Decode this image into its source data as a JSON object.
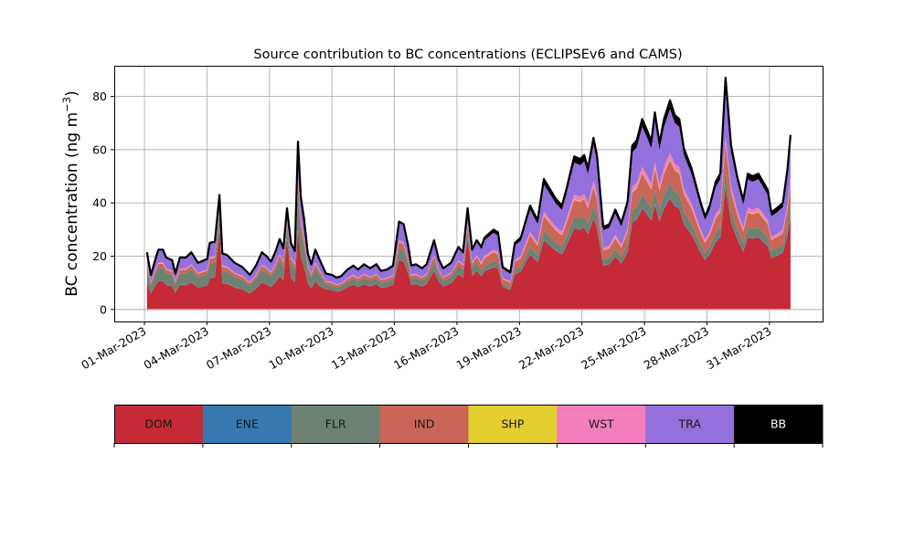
{
  "chart_data": {
    "type": "area",
    "stacked": true,
    "title": "Source contribution to BC concentrations (ECLIPSEv6 and CAMS)",
    "xlabel": "",
    "ylabel": "BC concentration (ng m",
    "ylabel_exponent": "−3",
    "ylabel_close": ")",
    "xlim_days_from_start": [
      -1.45,
      32.55
    ],
    "ylim": [
      -4.5,
      91.5
    ],
    "yticks": [
      0,
      20,
      40,
      60,
      80
    ],
    "xtick_labels": [
      "01-Mar-2023",
      "04-Mar-2023",
      "07-Mar-2023",
      "10-Mar-2023",
      "13-Mar-2023",
      "16-Mar-2023",
      "19-Mar-2023",
      "22-Mar-2023",
      "25-Mar-2023",
      "28-Mar-2023",
      "31-Mar-2023"
    ],
    "xtick_days": [
      0,
      3,
      6,
      9,
      12,
      15,
      18,
      21,
      24,
      27,
      30
    ],
    "grid": true,
    "legend_position": "bottom",
    "sources": [
      {
        "name": "DOM",
        "color": "#c52a37",
        "text_color": "#1a1a1a"
      },
      {
        "name": "ENE",
        "color": "#3878b0",
        "text_color": "#1a1a1a"
      },
      {
        "name": "FLR",
        "color": "#6d8272",
        "text_color": "#1a1a1a"
      },
      {
        "name": "IND",
        "color": "#c96657",
        "text_color": "#1a1a1a"
      },
      {
        "name": "SHP",
        "color": "#e4cd2f",
        "text_color": "#1a1a1a"
      },
      {
        "name": "WST",
        "color": "#f27fbc",
        "text_color": "#1a1a1a"
      },
      {
        "name": "TRA",
        "color": "#9370db",
        "text_color": "#1a1a1a"
      },
      {
        "name": "BB",
        "color": "#000000",
        "text_color": "#ffffff"
      }
    ],
    "x_days": [
      0.12,
      0.31,
      0.53,
      0.67,
      0.89,
      1.04,
      1.33,
      1.48,
      1.7,
      1.99,
      2.25,
      2.57,
      3.01,
      3.13,
      3.38,
      3.6,
      3.74,
      3.96,
      4.33,
      4.69,
      5.06,
      5.35,
      5.64,
      5.86,
      6.08,
      6.3,
      6.49,
      6.67,
      6.84,
      7.03,
      7.22,
      7.37,
      7.51,
      7.66,
      7.84,
      8.01,
      8.2,
      8.42,
      8.71,
      9.0,
      9.22,
      9.44,
      9.74,
      10.03,
      10.25,
      10.54,
      10.83,
      11.13,
      11.35,
      11.64,
      11.93,
      12.22,
      12.44,
      12.66,
      12.81,
      13.03,
      13.32,
      13.54,
      13.9,
      14.12,
      14.34,
      14.71,
      15.07,
      15.29,
      15.51,
      15.73,
      15.95,
      16.17,
      16.32,
      16.75,
      16.97,
      17.19,
      17.56,
      17.78,
      18.07,
      18.51,
      18.87,
      19.17,
      19.75,
      20.04,
      20.26,
      20.63,
      20.92,
      21.11,
      21.29,
      21.55,
      21.72,
      22.02,
      22.31,
      22.6,
      22.89,
      23.19,
      23.41,
      23.63,
      23.89,
      24.14,
      24.33,
      24.5,
      24.72,
      24.94,
      25.23,
      25.45,
      25.67,
      25.89,
      26.26,
      26.7,
      26.91,
      27.13,
      27.42,
      27.64,
      27.89,
      28.16,
      28.45,
      28.74,
      28.96,
      29.18,
      29.47,
      29.69,
      29.91,
      30.09,
      30.35,
      30.64,
      30.86,
      31.01
    ],
    "total": [
      21.5,
      13,
      19,
      22.5,
      22.5,
      19.5,
      18.5,
      13.5,
      19.5,
      19.5,
      21.5,
      17.5,
      19,
      25,
      25.5,
      43,
      21,
      20.5,
      17.5,
      16,
      13,
      16.5,
      21.5,
      20,
      18,
      22,
      26.5,
      23,
      38,
      25,
      22,
      63,
      42,
      34,
      21,
      17,
      22.5,
      18.5,
      13.5,
      13,
      12,
      12.5,
      15,
      16.5,
      15,
      17,
      15.5,
      17,
      14.5,
      15,
      16.5,
      33,
      32,
      24,
      16.5,
      17,
      15.5,
      17,
      26,
      19,
      15.5,
      17.5,
      23.5,
      21.5,
      38,
      22.5,
      26,
      23.5,
      27,
      30,
      29,
      16,
      14,
      25,
      27,
      39,
      33.5,
      49,
      41.5,
      39,
      45.5,
      57.5,
      56.5,
      58,
      53,
      64.5,
      58,
      31,
      32,
      37.5,
      32.5,
      40.5,
      61.5,
      63.5,
      71.5,
      67,
      63,
      74,
      62.5,
      71.5,
      78.5,
      73,
      71.5,
      60.5,
      53,
      40,
      35,
      39,
      48,
      51,
      87,
      61.5,
      50,
      41,
      51,
      50,
      51,
      48,
      45,
      36.5,
      38,
      40,
      52.5,
      65.5
    ],
    "composition_periods": [
      {
        "until_day": 8.5,
        "shares": {
          "DOM": 0.47,
          "ENE": 0.005,
          "FLR": 0.22,
          "IND": 0.07,
          "SHP": 0.005,
          "WST": 0.02,
          "TRA": 0.2,
          "BB": 0.01
        }
      },
      {
        "until_day": 16.0,
        "shares": {
          "DOM": 0.56,
          "ENE": 0.005,
          "FLR": 0.13,
          "IND": 0.07,
          "SHP": 0.005,
          "WST": 0.02,
          "TRA": 0.2,
          "BB": 0.01
        }
      },
      {
        "until_day": 32.0,
        "shares": {
          "DOM": 0.53,
          "ENE": 0.005,
          "FLR": 0.07,
          "IND": 0.11,
          "SHP": 0.005,
          "WST": 0.03,
          "TRA": 0.21,
          "BB": 0.04
        }
      }
    ],
    "spike_dom_share": 0.7
  }
}
